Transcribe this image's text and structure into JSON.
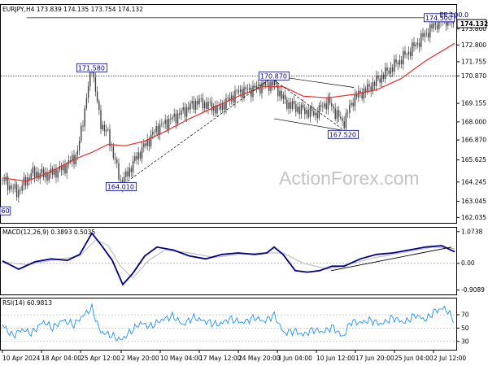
{
  "chart_data": {
    "type": "candlestick",
    "watermark": "ActionForex.com",
    "colors": {
      "price": "#404040",
      "sma": "#e8302b",
      "macd": "#00008b",
      "signal": "#c0c0c0",
      "rsi": "#1e90ff",
      "label": "#00008b",
      "trendline": "#000000"
    },
    "price_pane": {
      "title": "EURJPY,H4  173.839 174.135 173.754 174.132",
      "ylim": [
        161.8,
        175.2
      ],
      "yticks": [
        "173.800",
        "172.800",
        "171.755",
        "170.870",
        "169.155",
        "168.000",
        "166.870",
        "165.625",
        "164.245",
        "163.045",
        "162.035"
      ],
      "ytick_values": [
        173.8,
        172.8,
        171.755,
        170.87,
        169.155,
        168.0,
        166.87,
        165.625,
        164.245,
        163.045,
        162.035
      ],
      "last_price": "174.132",
      "horizontal_levels": [
        {
          "value": 170.87,
          "style": "dotted"
        },
        {
          "value": 174.5,
          "style": "solid"
        }
      ],
      "swing_labels": [
        {
          "text": "171.580",
          "t": 110,
          "price": 171.58
        },
        {
          "text": "164.010",
          "t": 146,
          "price": 164.01
        },
        {
          "text": "170.870",
          "t": 334,
          "price": 170.87
        },
        {
          "text": "167.520",
          "t": 419,
          "price": 167.52
        },
        {
          "text": "174.500",
          "t": 537,
          "price": 174.5
        },
        {
          "text": "60",
          "t": 6,
          "price": 162.5
        },
        {
          "text": "EE 100.0",
          "t": 550,
          "price": 174.5
        }
      ],
      "close_series": {
        "t": [
          0,
          18,
          36,
          55,
          75,
          92,
          110,
          120,
          130,
          146,
          165,
          190,
          215,
          240,
          265,
          290,
          305,
          320,
          334,
          348,
          365,
          385,
          400,
          419,
          432,
          450,
          470,
          490,
          508,
          522,
          537,
          548,
          556
        ],
        "close": [
          164.4,
          163.6,
          164.8,
          164.7,
          165.1,
          166.0,
          171.5,
          168.0,
          167.2,
          164.1,
          165.8,
          167.6,
          168.4,
          169.3,
          168.8,
          169.9,
          170.0,
          170.3,
          170.4,
          169.2,
          168.8,
          168.5,
          169.3,
          167.9,
          169.5,
          170.1,
          171.0,
          171.9,
          172.8,
          173.6,
          174.3,
          174.4,
          174.1
        ]
      },
      "sma_series": {
        "t": [
          0,
          30,
          60,
          90,
          110,
          130,
          150,
          175,
          200,
          230,
          260,
          290,
          320,
          345,
          370,
          400,
          430,
          460,
          490,
          520,
          556
        ],
        "val": [
          164.5,
          164.3,
          164.9,
          165.7,
          166.1,
          166.6,
          166.5,
          166.8,
          167.4,
          168.2,
          168.9,
          169.6,
          170.2,
          170.2,
          169.6,
          169.5,
          169.7,
          170.0,
          170.7,
          171.8,
          172.9
        ]
      },
      "trendlines": [
        {
          "t1": 146,
          "p1": 164.01,
          "t2": 334,
          "p2": 170.87,
          "style": "dashed"
        },
        {
          "t1": 334,
          "p1": 170.87,
          "t2": 432,
          "p2": 170.15,
          "style": "solid"
        },
        {
          "t1": 334,
          "p1": 168.2,
          "t2": 432,
          "p2": 167.35,
          "style": "solid"
        },
        {
          "t1": 334,
          "p1": 170.6,
          "t2": 419,
          "p2": 167.52,
          "style": "dashed"
        }
      ]
    },
    "macd_pane": {
      "title": "MACD(12,26,9) 0.3893 0.5035",
      "ylim": [
        -1.0,
        1.15
      ],
      "yticks": [
        "1.0738",
        "0.00",
        "-0.9089"
      ],
      "ytick_values": [
        1.0738,
        0.0,
        -0.9089
      ],
      "macd": {
        "t": [
          0,
          20,
          40,
          60,
          80,
          95,
          110,
          122,
          135,
          148,
          160,
          175,
          190,
          210,
          230,
          250,
          270,
          290,
          310,
          325,
          334,
          345,
          360,
          375,
          390,
          405,
          420,
          440,
          460,
          480,
          500,
          520,
          540,
          556
        ],
        "val": [
          0.08,
          -0.2,
          0.05,
          0.15,
          0.1,
          0.3,
          1.02,
          0.6,
          0.1,
          -0.72,
          -0.35,
          0.25,
          0.55,
          0.45,
          0.25,
          0.15,
          0.3,
          0.35,
          0.3,
          0.35,
          0.55,
          0.3,
          -0.25,
          -0.3,
          -0.25,
          -0.1,
          -0.1,
          0.15,
          0.3,
          0.35,
          0.45,
          0.55,
          0.6,
          0.39
        ]
      },
      "signal": {
        "t": [
          0,
          30,
          60,
          95,
          115,
          130,
          145,
          160,
          180,
          200,
          230,
          260,
          290,
          320,
          345,
          370,
          400,
          430,
          460,
          500,
          530,
          556
        ],
        "val": [
          0.05,
          -0.05,
          0.1,
          0.25,
          0.8,
          0.6,
          -0.1,
          -0.5,
          0.1,
          0.45,
          0.35,
          0.2,
          0.3,
          0.35,
          0.35,
          0.0,
          -0.2,
          0.0,
          0.2,
          0.4,
          0.55,
          0.5
        ]
      },
      "trendline": {
        "t1": 404,
        "v1": -0.25,
        "t2": 552,
        "v2": 0.55
      }
    },
    "rsi_pane": {
      "title": "RSI(14) 60.9813",
      "ylim": [
        20,
        92
      ],
      "yticks": [
        "70",
        "50",
        "30"
      ],
      "ytick_values": [
        70,
        50,
        30
      ],
      "rsi": {
        "t": [
          0,
          12,
          24,
          36,
          50,
          62,
          74,
          88,
          100,
          110,
          120,
          132,
          146,
          158,
          170,
          182,
          195,
          210,
          222,
          234,
          250,
          265,
          280,
          295,
          310,
          322,
          334,
          346,
          358,
          370,
          382,
          394,
          406,
          419,
          428,
          440,
          452,
          466,
          480,
          494,
          508,
          520,
          532,
          544,
          556
        ],
        "val": [
          55,
          38,
          48,
          42,
          60,
          50,
          62,
          55,
          70,
          80,
          45,
          40,
          32,
          45,
          58,
          52,
          62,
          68,
          55,
          66,
          60,
          55,
          64,
          58,
          66,
          60,
          70,
          42,
          46,
          40,
          48,
          44,
          52,
          36,
          60,
          58,
          62,
          56,
          66,
          58,
          70,
          62,
          76,
          80,
          61
        ]
      }
    },
    "x_axis": {
      "labels": [
        "10 Apr 2024",
        "18 Apr 04:00",
        "25 Apr 12:00",
        "2 May 20:00",
        "10 May 04:00",
        "17 May 12:00",
        "24 May 20:00",
        "3 Jun 04:00",
        "10 Jun 12:00",
        "17 Jun 20:00",
        "25 Jun 04:00",
        "2 Jul 12:00"
      ],
      "label_t": [
        0,
        48,
        96,
        146,
        194,
        242,
        290,
        338,
        386,
        434,
        482,
        530
      ],
      "t_max": 556
    }
  }
}
